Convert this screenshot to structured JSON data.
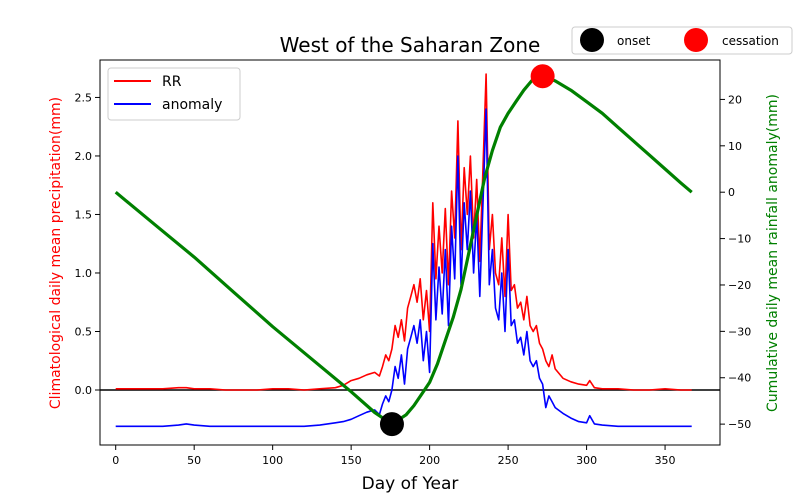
{
  "chart_data": {
    "type": "line",
    "title": "West of the Saharan Zone",
    "xlabel": "Day of Year",
    "ylabel_left": "Climatological daily mean precipitation(mm)",
    "ylabel_right": "Cumulative daily mean rainfall anomaly(mm)",
    "xlim": [
      -10,
      385
    ],
    "ylim_left": [
      -0.47,
      2.82
    ],
    "ylim_right": [
      -54.5,
      28.5
    ],
    "x_ticks": [
      0,
      50,
      100,
      150,
      200,
      250,
      300,
      350
    ],
    "y_left_ticks": [
      0.0,
      0.5,
      1.0,
      1.5,
      2.0,
      2.5
    ],
    "y_right_ticks": [
      -50,
      -40,
      -30,
      -20,
      -10,
      0,
      10,
      20
    ],
    "legend_left": {
      "placement": "upper-left",
      "entries": [
        "RR",
        "anomaly"
      ]
    },
    "legend_top": {
      "placement": "top-right",
      "entries": [
        "onset",
        "cessation"
      ]
    },
    "colors": {
      "rr": "#ff0000",
      "anomaly": "#0000ff",
      "cumulative": "#008000",
      "onset": "#000000",
      "cessation": "#ff0000",
      "zero_line": "#000000"
    },
    "series": [
      {
        "name": "RR",
        "axis": "left",
        "x": [
          0,
          10,
          20,
          30,
          40,
          45,
          50,
          60,
          70,
          80,
          90,
          100,
          110,
          120,
          130,
          140,
          145,
          150,
          155,
          160,
          165,
          168,
          170,
          172,
          174,
          176,
          178,
          180,
          182,
          184,
          186,
          188,
          190,
          192,
          194,
          196,
          198,
          200,
          202,
          204,
          206,
          208,
          210,
          212,
          214,
          216,
          218,
          220,
          222,
          224,
          226,
          228,
          230,
          232,
          234,
          236,
          238,
          240,
          242,
          244,
          246,
          248,
          250,
          252,
          254,
          256,
          258,
          260,
          262,
          264,
          266,
          268,
          270,
          272,
          274,
          276,
          278,
          280,
          285,
          290,
          295,
          300,
          302,
          305,
          310,
          320,
          330,
          340,
          350,
          360,
          367
        ],
        "values": [
          0.01,
          0.01,
          0.01,
          0.01,
          0.02,
          0.02,
          0.01,
          0.01,
          0.0,
          0.0,
          0.0,
          0.01,
          0.01,
          0.0,
          0.01,
          0.02,
          0.04,
          0.08,
          0.1,
          0.13,
          0.15,
          0.12,
          0.2,
          0.3,
          0.25,
          0.35,
          0.55,
          0.45,
          0.6,
          0.42,
          0.7,
          0.8,
          0.9,
          0.75,
          0.95,
          0.6,
          0.85,
          0.5,
          1.6,
          0.95,
          1.4,
          1.0,
          1.55,
          0.9,
          1.7,
          1.3,
          2.3,
          1.2,
          1.9,
          1.5,
          2.0,
          1.3,
          1.8,
          1.1,
          1.9,
          2.7,
          1.2,
          1.5,
          1.0,
          0.9,
          1.3,
          0.8,
          1.5,
          0.85,
          0.9,
          0.7,
          0.75,
          0.6,
          0.8,
          0.55,
          0.5,
          0.55,
          0.4,
          0.35,
          0.25,
          0.2,
          0.3,
          0.18,
          0.1,
          0.07,
          0.05,
          0.04,
          0.08,
          0.02,
          0.01,
          0.01,
          0.0,
          0.0,
          0.01,
          0.0,
          0.0
        ]
      },
      {
        "name": "anomaly",
        "axis": "left",
        "x": [
          0,
          10,
          20,
          30,
          40,
          45,
          50,
          60,
          70,
          80,
          90,
          100,
          110,
          120,
          130,
          140,
          145,
          150,
          155,
          160,
          165,
          168,
          170,
          172,
          174,
          176,
          178,
          180,
          182,
          184,
          186,
          188,
          190,
          192,
          194,
          196,
          198,
          200,
          202,
          204,
          206,
          208,
          210,
          212,
          214,
          216,
          218,
          220,
          222,
          224,
          226,
          228,
          230,
          232,
          234,
          236,
          238,
          240,
          242,
          244,
          246,
          248,
          250,
          252,
          254,
          256,
          258,
          260,
          262,
          264,
          266,
          268,
          270,
          272,
          274,
          276,
          278,
          280,
          285,
          290,
          295,
          300,
          302,
          305,
          310,
          320,
          330,
          340,
          350,
          360,
          367
        ],
        "values": [
          -0.31,
          -0.31,
          -0.31,
          -0.31,
          -0.3,
          -0.29,
          -0.3,
          -0.31,
          -0.31,
          -0.31,
          -0.31,
          -0.31,
          -0.31,
          -0.31,
          -0.3,
          -0.28,
          -0.27,
          -0.25,
          -0.22,
          -0.19,
          -0.17,
          -0.21,
          -0.12,
          -0.05,
          -0.1,
          0.0,
          0.2,
          0.1,
          0.3,
          0.05,
          0.35,
          0.45,
          0.55,
          0.4,
          0.6,
          0.25,
          0.5,
          0.15,
          1.25,
          0.6,
          1.05,
          0.65,
          1.2,
          0.55,
          1.4,
          0.95,
          2.0,
          0.9,
          1.6,
          1.2,
          1.7,
          1.0,
          1.5,
          0.8,
          1.6,
          2.4,
          0.9,
          1.2,
          0.7,
          0.6,
          1.0,
          0.5,
          1.2,
          0.55,
          0.6,
          0.4,
          0.45,
          0.3,
          0.5,
          0.25,
          0.2,
          0.25,
          0.1,
          0.05,
          -0.15,
          -0.05,
          -0.1,
          -0.15,
          -0.2,
          -0.24,
          -0.27,
          -0.28,
          -0.22,
          -0.29,
          -0.3,
          -0.31,
          -0.31,
          -0.31,
          -0.31,
          -0.31,
          -0.31
        ]
      },
      {
        "name": "",
        "axis": "right",
        "x": [
          0,
          25,
          50,
          75,
          100,
          125,
          150,
          165,
          176,
          185,
          190,
          195,
          200,
          205,
          210,
          215,
          220,
          225,
          230,
          235,
          240,
          245,
          250,
          255,
          260,
          265,
          272,
          280,
          290,
          300,
          310,
          320,
          330,
          340,
          350,
          360,
          367
        ],
        "values": [
          0,
          -7,
          -14,
          -21.5,
          -29,
          -36,
          -43,
          -47.5,
          -50,
          -48,
          -46,
          -43.5,
          -41,
          -37,
          -32,
          -27,
          -21,
          -13,
          -5,
          3,
          9,
          14,
          17,
          19.5,
          22,
          24,
          25,
          24,
          22,
          19.5,
          17,
          14,
          11,
          8,
          5,
          2,
          0
        ]
      }
    ],
    "markers": [
      {
        "name": "onset",
        "x": 176,
        "y": -50,
        "axis": "right"
      },
      {
        "name": "cessation",
        "x": 272,
        "y": 25,
        "axis": "right"
      }
    ]
  }
}
